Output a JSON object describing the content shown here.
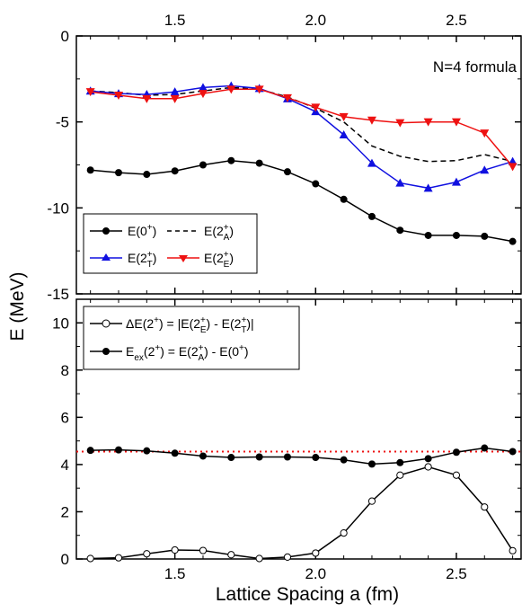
{
  "chart_data": [
    {
      "type": "line",
      "panel": "top",
      "annotation": "N=4 formula",
      "xlim": [
        1.15,
        2.73
      ],
      "ylim": [
        -15,
        0
      ],
      "yticks": [
        0,
        -5,
        -10,
        -15
      ],
      "xticks": [
        1.5,
        2.0,
        2.5
      ],
      "xtick_labels": [
        "1.5",
        "2.0",
        "2.5"
      ],
      "ytick_labels": [
        "0",
        "-5",
        "-10",
        "-15"
      ],
      "x": [
        1.2,
        1.3,
        1.4,
        1.5,
        1.6,
        1.7,
        1.8,
        1.9,
        2.0,
        2.1,
        2.2,
        2.3,
        2.4,
        2.5,
        2.6,
        2.7
      ],
      "series": [
        {
          "key": "E0",
          "legend_main": "E(0",
          "legend_sup": "+",
          "legend_tail": ")",
          "color": "#000000",
          "marker": "filled-circle",
          "line": "solid",
          "values": [
            -7.8,
            -7.95,
            -8.05,
            -7.85,
            -7.5,
            -7.25,
            -7.4,
            -7.9,
            -8.6,
            -9.5,
            -10.5,
            -11.3,
            -11.6,
            -11.6,
            -11.65,
            -11.95
          ]
        },
        {
          "key": "E2A",
          "legend_main": "E(2",
          "legend_sup": "+",
          "legend_sub": "A",
          "legend_tail": ")",
          "color": "#000000",
          "marker": "none",
          "line": "dashed",
          "values": [
            -3.2,
            -3.3,
            -3.45,
            -3.4,
            -3.2,
            -3.0,
            -3.1,
            -3.55,
            -4.2,
            -5.0,
            -6.4,
            -7.0,
            -7.3,
            -7.25,
            -6.9,
            -7.3
          ]
        },
        {
          "key": "E2T",
          "legend_main": "E(2",
          "legend_sup": "+",
          "legend_sub": "T",
          "legend_tail": ")",
          "color": "#1010e0",
          "marker": "up-triangle",
          "line": "solid",
          "values": [
            -3.2,
            -3.35,
            -3.4,
            -3.25,
            -3.0,
            -2.9,
            -3.05,
            -3.65,
            -4.4,
            -5.75,
            -7.4,
            -8.55,
            -8.85,
            -8.5,
            -7.8,
            -7.3
          ]
        },
        {
          "key": "E2E",
          "legend_main": "E(2",
          "legend_sup": "+",
          "legend_sub": "E",
          "legend_tail": ")",
          "color": "#ee1111",
          "marker": "down-triangle",
          "line": "solid",
          "values": [
            -3.25,
            -3.45,
            -3.65,
            -3.65,
            -3.35,
            -3.1,
            -3.1,
            -3.6,
            -4.15,
            -4.7,
            -4.9,
            -5.05,
            -5.0,
            -5.0,
            -5.65,
            -7.6
          ]
        }
      ]
    },
    {
      "type": "line",
      "panel": "bottom",
      "xlabel": "Lattice Spacing a (fm)",
      "ylabel": "E (MeV)",
      "xlim": [
        1.15,
        2.73
      ],
      "ylim": [
        0,
        11
      ],
      "yticks": [
        0,
        2,
        4,
        6,
        8,
        10
      ],
      "xticks": [
        1.5,
        2.0,
        2.5
      ],
      "xtick_labels": [
        "1.5",
        "2.0",
        "2.5"
      ],
      "ytick_labels": [
        "0",
        "2",
        "4",
        "6",
        "8",
        "10"
      ],
      "reference_line": {
        "y": 4.55,
        "color": "#ee1111",
        "style": "dotted"
      },
      "x": [
        1.2,
        1.3,
        1.4,
        1.5,
        1.6,
        1.7,
        1.8,
        1.9,
        2.0,
        2.1,
        2.2,
        2.3,
        2.4,
        2.5,
        2.6,
        2.7
      ],
      "series": [
        {
          "key": "dE",
          "legend_text": "ΔE(2⁺) = |E(2⁺E) - E(2⁺T)|",
          "color": "#000000",
          "marker": "open-circle",
          "line": "solid",
          "values": [
            0.02,
            0.05,
            0.22,
            0.38,
            0.36,
            0.18,
            0.02,
            0.08,
            0.25,
            1.1,
            2.45,
            3.55,
            3.9,
            3.55,
            2.2,
            0.35
          ]
        },
        {
          "key": "Eex",
          "legend_text": "Eex(2⁺) = E(2⁺A) - E(0⁺)",
          "color": "#000000",
          "marker": "filled-circle",
          "line": "solid",
          "values": [
            4.6,
            4.62,
            4.58,
            4.48,
            4.36,
            4.3,
            4.32,
            4.32,
            4.3,
            4.2,
            4.02,
            4.08,
            4.25,
            4.52,
            4.7,
            4.55
          ]
        }
      ]
    }
  ],
  "legend_top": {
    "row1_left": {
      "main": "E(0",
      "sup": "+",
      "tail": ")"
    },
    "row1_right": {
      "main": "E(2",
      "sup": "+",
      "sub": "A",
      "tail": ")"
    },
    "row2_left": {
      "main": "E(2",
      "sup": "+",
      "sub": "T",
      "tail": ")"
    },
    "row2_right": {
      "main": "E(2",
      "sup": "+",
      "sub": "E",
      "tail": ")"
    }
  },
  "legend_bottom": {
    "row1": {
      "p1": "ΔE(2",
      "sup1": "+",
      "p2": ") = |E(2",
      "sup2": "+",
      "sub2": "E",
      "p3": ") - E(2",
      "sup3": "+",
      "sub3": "T",
      "p4": ")|"
    },
    "row2": {
      "p1": "E",
      "sub1": "ex",
      "p2": "(2",
      "sup2": "+",
      "p3": ") = E(2",
      "sup3": "+",
      "sub3": "A",
      "p4": ") - E(0",
      "sup4": "+",
      "p5": ")"
    }
  }
}
